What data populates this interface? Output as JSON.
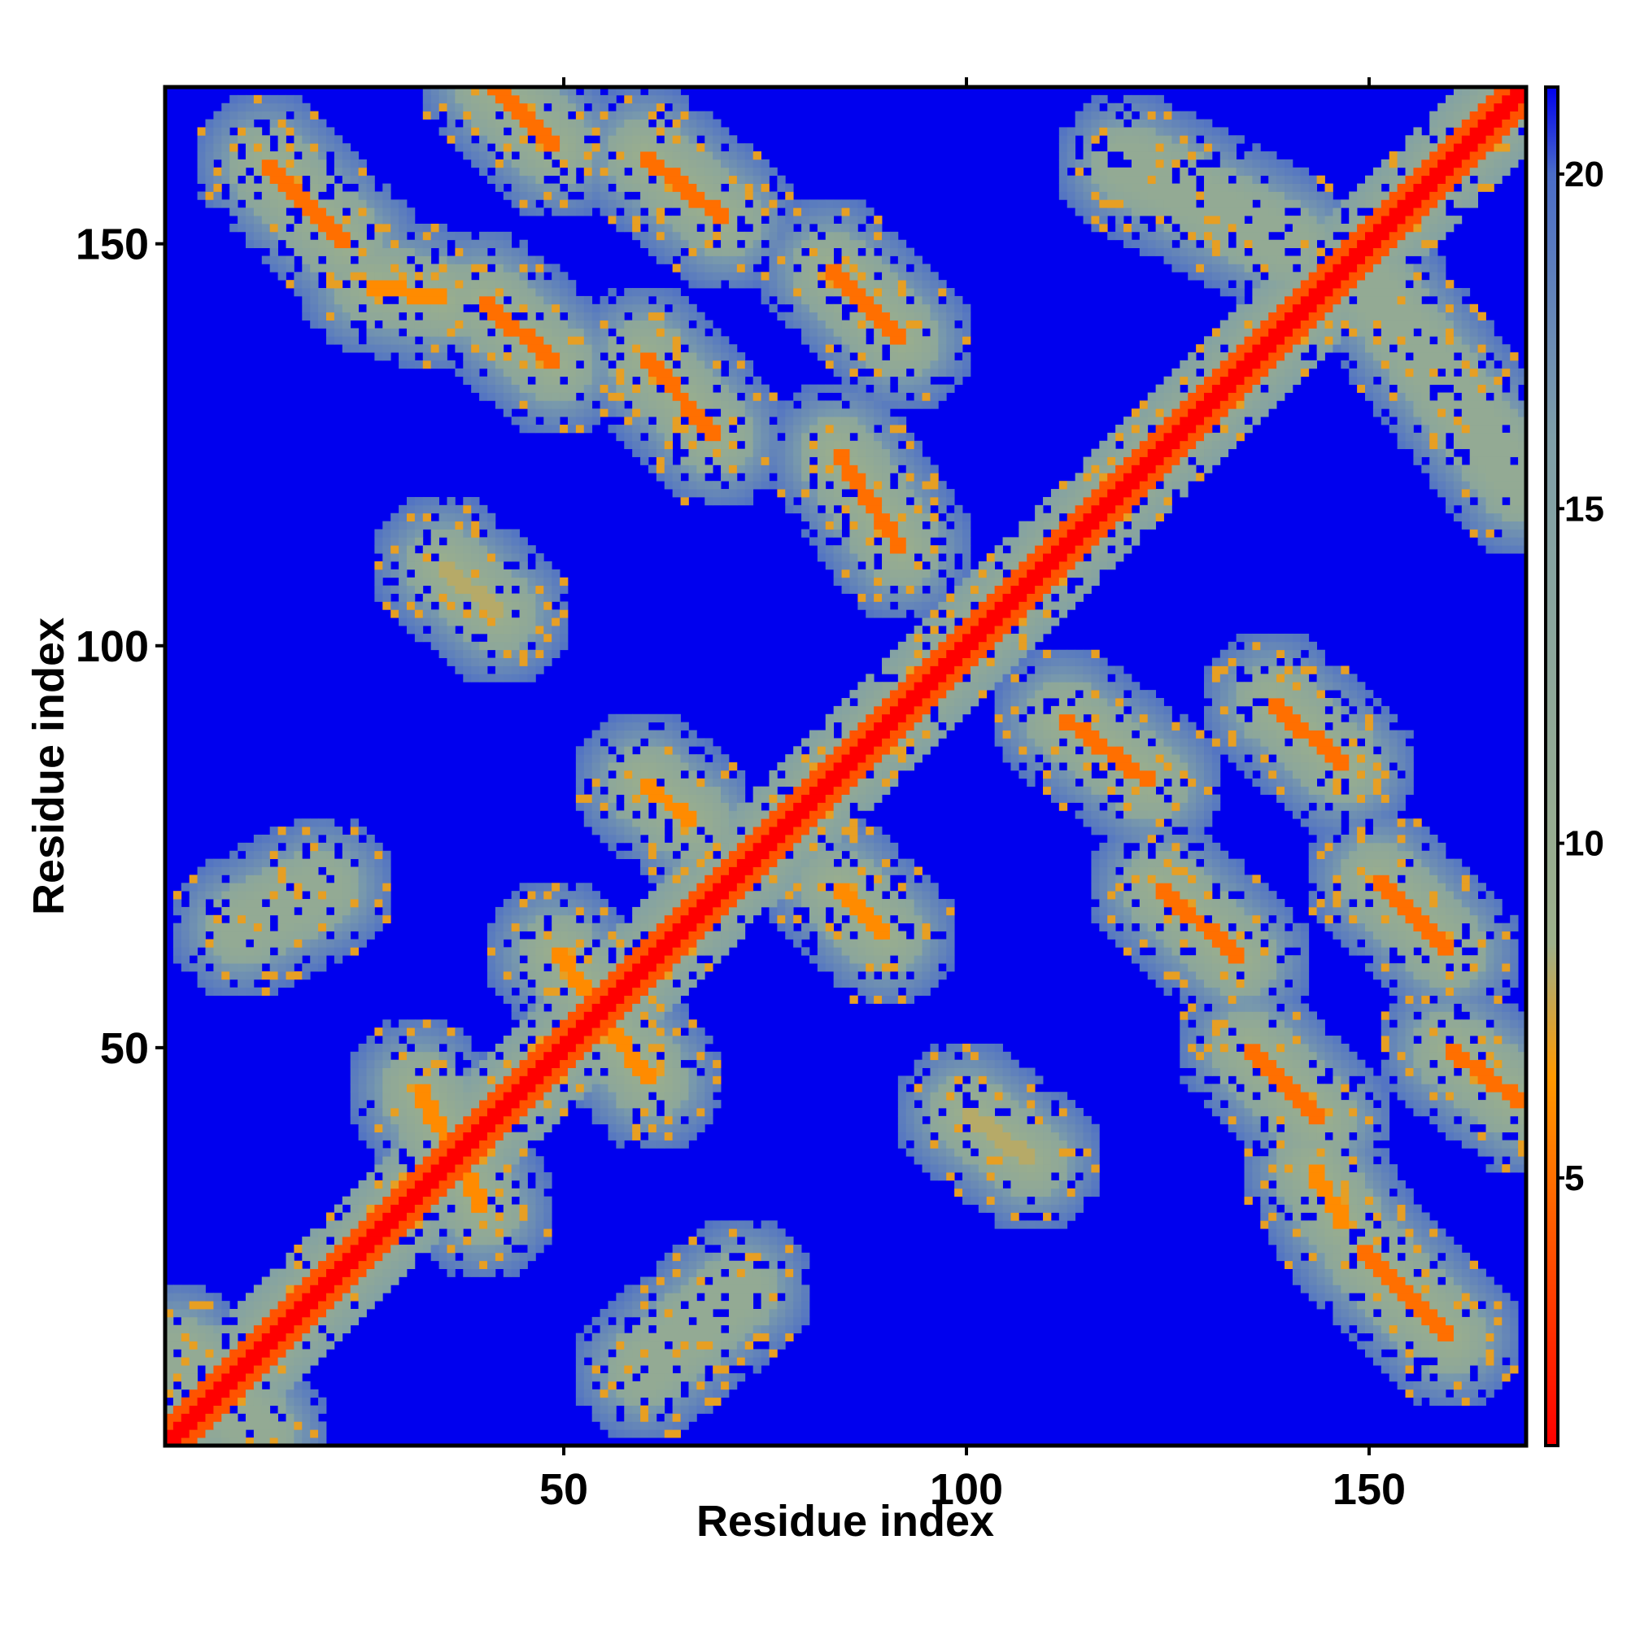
{
  "chart_data": {
    "type": "heatmap",
    "title": "",
    "xlabel": "Residue index",
    "ylabel": "Residue index",
    "n_residues": 169,
    "xlim": [
      1,
      169
    ],
    "ylim": [
      1,
      169
    ],
    "x_ticks": [
      50,
      100,
      150
    ],
    "y_ticks": [
      50,
      100,
      150
    ],
    "x_tick_labels": [
      "50",
      "100",
      "150"
    ],
    "y_tick_labels": [
      "50",
      "100",
      "150"
    ],
    "colorbar": {
      "range": [
        1,
        21.3
      ],
      "ticks": [
        5,
        10,
        15,
        20
      ],
      "tick_labels": [
        "5",
        "10",
        "15",
        "20"
      ],
      "color_stops": [
        {
          "value": 1,
          "color": "#ff0000"
        },
        {
          "value": 6.5,
          "color": "#ff9900"
        },
        {
          "value": 8.5,
          "color": "#9db08a"
        },
        {
          "value": 16,
          "color": "#7f9fa8"
        },
        {
          "value": 20,
          "color": "#4a6cc8"
        },
        {
          "value": 21.3,
          "color": "#0000ee"
        }
      ]
    },
    "background_color": "#0000ee",
    "value_meaning": "pairwise distance (low = red, high = blue)",
    "contact_features": [
      {
        "kind": "diagonal",
        "from": [
          1,
          1
        ],
        "to": [
          169,
          169
        ],
        "value": 1
      },
      {
        "kind": "parallel",
        "from": [
          13,
          160
        ],
        "to": [
          23,
          150
        ],
        "value": 5
      },
      {
        "kind": "antiparallel_band",
        "from": [
          41,
          170
        ],
        "to": [
          49,
          162
        ],
        "value": 5
      },
      {
        "kind": "antiparallel_band",
        "from": [
          60,
          161
        ],
        "to": [
          70,
          153
        ],
        "value": 5
      },
      {
        "kind": "antiparallel_band",
        "from": [
          40,
          143
        ],
        "to": [
          49,
          135
        ],
        "value": 5
      },
      {
        "kind": "antiparallel_band",
        "from": [
          60,
          136
        ],
        "to": [
          69,
          126
        ],
        "value": 5
      },
      {
        "kind": "antiparallel_band",
        "from": [
          83,
          147
        ],
        "to": [
          92,
          138
        ],
        "value": 5
      },
      {
        "kind": "antiparallel_band",
        "from": [
          84,
          124
        ],
        "to": [
          92,
          112
        ],
        "value": 5
      },
      {
        "kind": "antiparallel_band",
        "from": [
          112,
          91
        ],
        "to": [
          123,
          83
        ],
        "value": 5
      },
      {
        "kind": "antiparallel_band",
        "from": [
          138,
          93
        ],
        "to": [
          147,
          85
        ],
        "value": 5
      },
      {
        "kind": "antiparallel_band",
        "from": [
          124,
          70
        ],
        "to": [
          134,
          61
        ],
        "value": 5
      },
      {
        "kind": "antiparallel_band",
        "from": [
          151,
          71
        ],
        "to": [
          160,
          62
        ],
        "value": 5
      },
      {
        "kind": "antiparallel_band",
        "from": [
          135,
          50
        ],
        "to": [
          144,
          41
        ],
        "value": 5
      },
      {
        "kind": "antiparallel_band",
        "from": [
          160,
          50
        ],
        "to": [
          169,
          43
        ],
        "value": 5
      },
      {
        "kind": "antiparallel_band",
        "from": [
          149,
          25
        ],
        "to": [
          160,
          14
        ],
        "value": 5
      },
      {
        "kind": "antiparallel_band",
        "from": [
          60,
          83
        ],
        "to": [
          66,
          78
        ],
        "value": 6
      },
      {
        "kind": "antiparallel_band",
        "from": [
          84,
          70
        ],
        "to": [
          90,
          64
        ],
        "value": 6
      },
      {
        "kind": "antiparallel_band",
        "from": [
          49,
          62
        ],
        "to": [
          53,
          57
        ],
        "value": 6
      },
      {
        "kind": "antiparallel_band",
        "from": [
          55,
          53
        ],
        "to": [
          61,
          46
        ],
        "value": 6
      },
      {
        "kind": "antiparallel_band",
        "from": [
          26,
          145
        ],
        "to": [
          35,
          143
        ],
        "value": 6
      },
      {
        "kind": "antiparallel_band",
        "from": [
          32,
          45
        ],
        "to": [
          40,
          30
        ],
        "value": 6
      },
      {
        "kind": "antiparallel_band",
        "from": [
          143,
          35
        ],
        "to": [
          147,
          28
        ],
        "value": 6
      },
      {
        "kind": "antiparallel_band",
        "from": [
          100,
          42
        ],
        "to": [
          108,
          36
        ],
        "value": 8
      },
      {
        "kind": "antiparallel_band",
        "from": [
          35,
          110
        ],
        "to": [
          42,
          104
        ],
        "value": 8
      },
      {
        "kind": "antiparallel_band",
        "from": [
          120,
          160
        ],
        "to": [
          140,
          150
        ],
        "value": 11
      },
      {
        "kind": "antiparallel_band",
        "from": [
          150,
          145
        ],
        "to": [
          169,
          120
        ],
        "value": 11
      },
      {
        "kind": "antiparallel_band",
        "from": [
          2,
          12
        ],
        "to": [
          12,
          2
        ],
        "value": 11
      },
      {
        "kind": "antiparallel_band",
        "from": [
          10,
          65
        ],
        "to": [
          20,
          70
        ],
        "value": 11
      },
      {
        "kind": "antiparallel_band",
        "from": [
          60,
          10
        ],
        "to": [
          72,
          20
        ],
        "value": 11
      }
    ]
  }
}
